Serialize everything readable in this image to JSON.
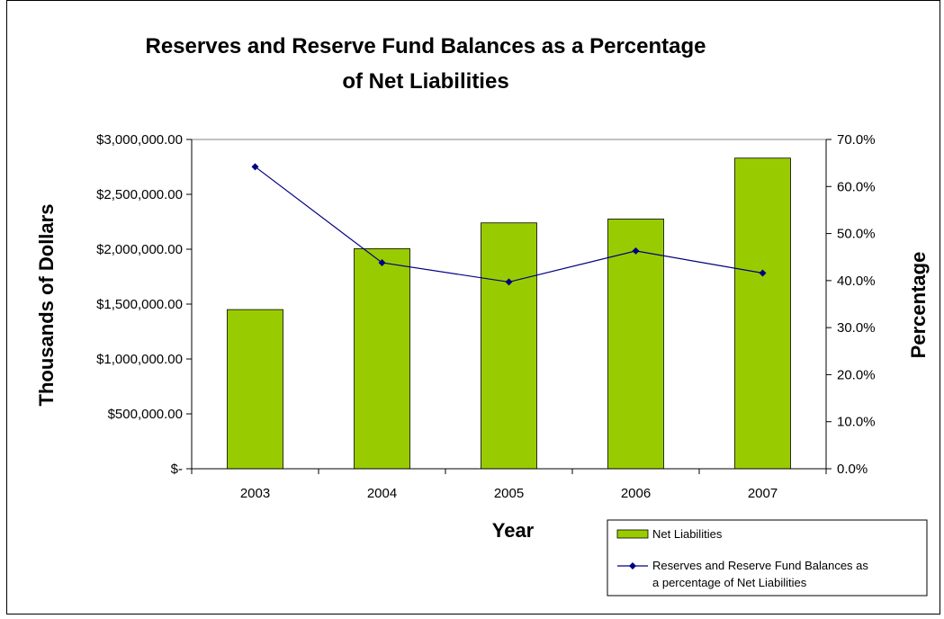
{
  "chart_data": {
    "type": "bar",
    "title_lines": [
      "Reserves and Reserve Fund Balances as a Percentage",
      "of Net Liabilities"
    ],
    "xlabel": "Year",
    "ylabel": "Thousands of Dollars",
    "y2label": "Percentage",
    "categories": [
      "2003",
      "2004",
      "2005",
      "2006",
      "2007"
    ],
    "ylim": [
      0,
      3000000
    ],
    "y_ticks": [
      0,
      500000,
      1000000,
      1500000,
      2000000,
      2500000,
      3000000
    ],
    "y_tick_labels": [
      "$-",
      "$500,000.00",
      "$1,000,000.00",
      "$1,500,000.00",
      "$2,000,000.00",
      "$2,500,000.00",
      "$3,000,000.00"
    ],
    "y2lim": [
      0,
      70
    ],
    "y2_ticks": [
      0,
      10,
      20,
      30,
      40,
      50,
      60,
      70
    ],
    "y2_tick_labels": [
      "0.0%",
      "10.0%",
      "20.0%",
      "30.0%",
      "40.0%",
      "50.0%",
      "60.0%",
      "70.0%"
    ],
    "series": [
      {
        "name": "Net Liabilities",
        "type": "bar",
        "axis": "left",
        "color": "#99CC00",
        "values": [
          1450000,
          2005000,
          2240000,
          2275000,
          2830000
        ]
      },
      {
        "name": "Reserves and Reserve Fund Balances as a percentage of Net Liabilities",
        "legend_lines": [
          "Reserves and Reserve Fund Balances as",
          "a percentage of Net Liabilities"
        ],
        "type": "line",
        "axis": "right",
        "color": "#000080",
        "marker": "diamond",
        "values": [
          64.2,
          43.8,
          39.7,
          46.3,
          41.6
        ]
      }
    ],
    "grid": "top gridline only",
    "legend_position": "bottom-right"
  }
}
